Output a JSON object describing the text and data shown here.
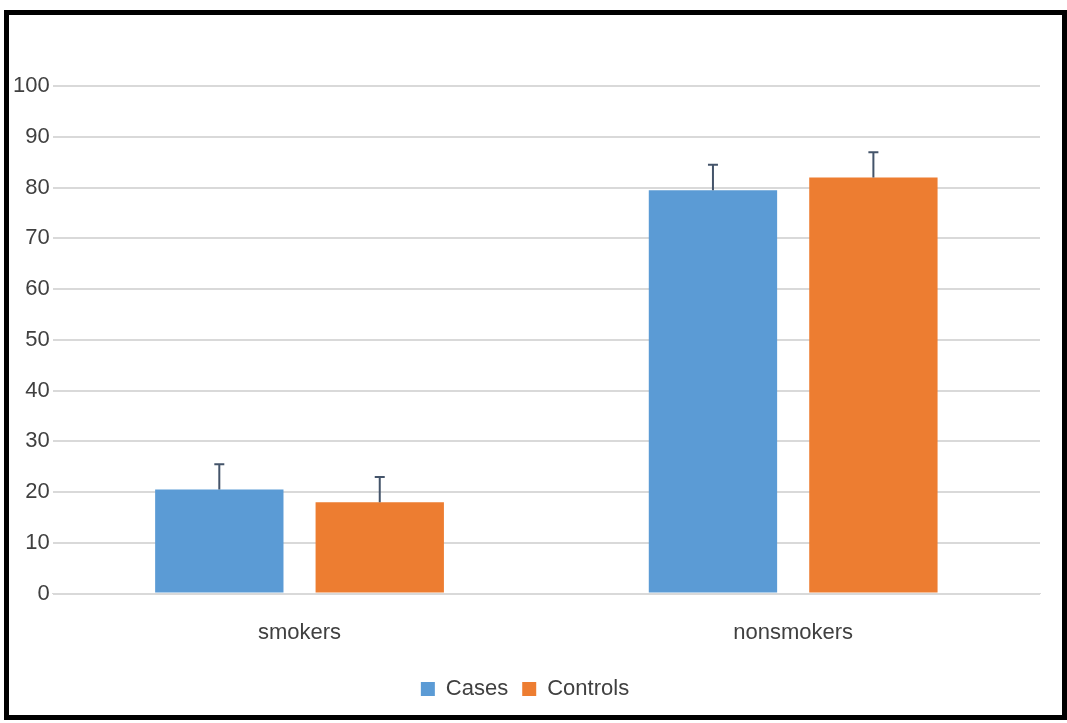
{
  "chart_data": {
    "type": "bar",
    "categories": [
      "smokers",
      "nonsmokers"
    ],
    "series": [
      {
        "name": "Cases",
        "color": "#5b9bd5",
        "values": [
          20.5,
          79.5
        ],
        "errors": [
          [
            20.5,
            25.5
          ],
          [
            79.5,
            84.5
          ]
        ]
      },
      {
        "name": "Controls",
        "color": "#ed7d31",
        "values": [
          18,
          82
        ],
        "errors": [
          [
            18,
            23
          ],
          [
            82,
            87
          ]
        ]
      }
    ],
    "ylim": [
      0,
      100
    ],
    "yticks": [
      0,
      10,
      20,
      30,
      40,
      50,
      60,
      70,
      80,
      90,
      100
    ],
    "grid": "y",
    "legend": "bottom"
  }
}
